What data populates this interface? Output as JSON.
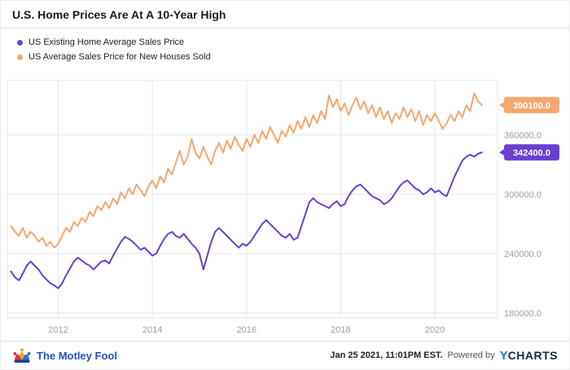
{
  "header": {
    "title": "U.S. Home Prices Are At A 10-Year High"
  },
  "legend": {
    "items": [
      {
        "label": "US Existing Home Average Sales Price"
      },
      {
        "label": "US Average Sales Price for New Houses Sold"
      }
    ]
  },
  "footer": {
    "brand": "The Motley Fool",
    "timestamp": "Jan 25 2021, 11:01PM EST.",
    "powered_by": "Powered by",
    "ycharts_y": "Y",
    "ycharts_rest": "CHARTS"
  },
  "chart_data": {
    "type": "line",
    "title": "U.S. Home Prices Are At A 10-Year High",
    "x_start": 2011.0,
    "x_step_months": 1,
    "x_ticks": [
      2012,
      2014,
      2016,
      2018,
      2020
    ],
    "y_ticks": [
      180000,
      240000,
      300000,
      360000
    ],
    "xlim": [
      2010.92,
      2021.33
    ],
    "ylim": [
      175000,
      415000
    ],
    "grid_color": "#e7e7e7",
    "axis_color": "#9aa0a6",
    "legend_position": "top-left",
    "series": [
      {
        "id": "existing-homes",
        "name": "US Existing Home Average Sales Price",
        "color": "#6b3fd4",
        "end_label": "342400.0",
        "values": [
          222000,
          216000,
          213000,
          220000,
          228000,
          232000,
          228000,
          224000,
          218000,
          214000,
          210000,
          208000,
          205000,
          210000,
          218000,
          225000,
          232000,
          236000,
          233000,
          230000,
          228000,
          224000,
          228000,
          232000,
          233000,
          230000,
          238000,
          245000,
          252000,
          257000,
          255000,
          252000,
          248000,
          244000,
          246000,
          242000,
          238000,
          240000,
          248000,
          255000,
          260000,
          262000,
          258000,
          256000,
          260000,
          255000,
          250000,
          246000,
          240000,
          224000,
          238000,
          252000,
          262000,
          266000,
          262000,
          258000,
          254000,
          250000,
          246000,
          250000,
          248000,
          252000,
          258000,
          264000,
          270000,
          274000,
          270000,
          266000,
          262000,
          258000,
          256000,
          260000,
          254000,
          256000,
          268000,
          280000,
          292000,
          296000,
          292000,
          290000,
          288000,
          286000,
          290000,
          293000,
          288000,
          290000,
          298000,
          304000,
          308000,
          310000,
          306000,
          302000,
          298000,
          296000,
          294000,
          290000,
          292000,
          296000,
          302000,
          308000,
          312000,
          314000,
          310000,
          306000,
          304000,
          300000,
          302000,
          306000,
          302000,
          304000,
          300000,
          298000,
          308000,
          318000,
          326000,
          334000,
          338000,
          340000,
          338000,
          341000,
          342400
        ]
      },
      {
        "id": "new-houses",
        "name": "US Average Sales Price for New Houses Sold",
        "color": "#f6a66f",
        "end_label": "390100.0",
        "values": [
          268000,
          262000,
          258000,
          266000,
          256000,
          262000,
          258000,
          252000,
          256000,
          248000,
          252000,
          246000,
          250000,
          258000,
          266000,
          262000,
          272000,
          268000,
          276000,
          272000,
          282000,
          278000,
          288000,
          284000,
          292000,
          286000,
          296000,
          290000,
          302000,
          296000,
          306000,
          300000,
          310000,
          304000,
          298000,
          308000,
          314000,
          306000,
          318000,
          312000,
          326000,
          320000,
          332000,
          344000,
          330000,
          338000,
          356000,
          342000,
          336000,
          348000,
          338000,
          330000,
          344000,
          352000,
          342000,
          354000,
          346000,
          358000,
          350000,
          344000,
          356000,
          348000,
          360000,
          352000,
          364000,
          356000,
          368000,
          360000,
          352000,
          364000,
          358000,
          370000,
          362000,
          374000,
          366000,
          378000,
          368000,
          380000,
          372000,
          384000,
          376000,
          400000,
          388000,
          396000,
          384000,
          392000,
          380000,
          390000,
          398000,
          386000,
          394000,
          382000,
          390000,
          378000,
          388000,
          376000,
          384000,
          372000,
          382000,
          376000,
          388000,
          378000,
          386000,
          374000,
          384000,
          370000,
          380000,
          374000,
          382000,
          374000,
          366000,
          372000,
          380000,
          374000,
          384000,
          378000,
          390000,
          384000,
          402000,
          394000,
          390100
        ]
      }
    ]
  }
}
